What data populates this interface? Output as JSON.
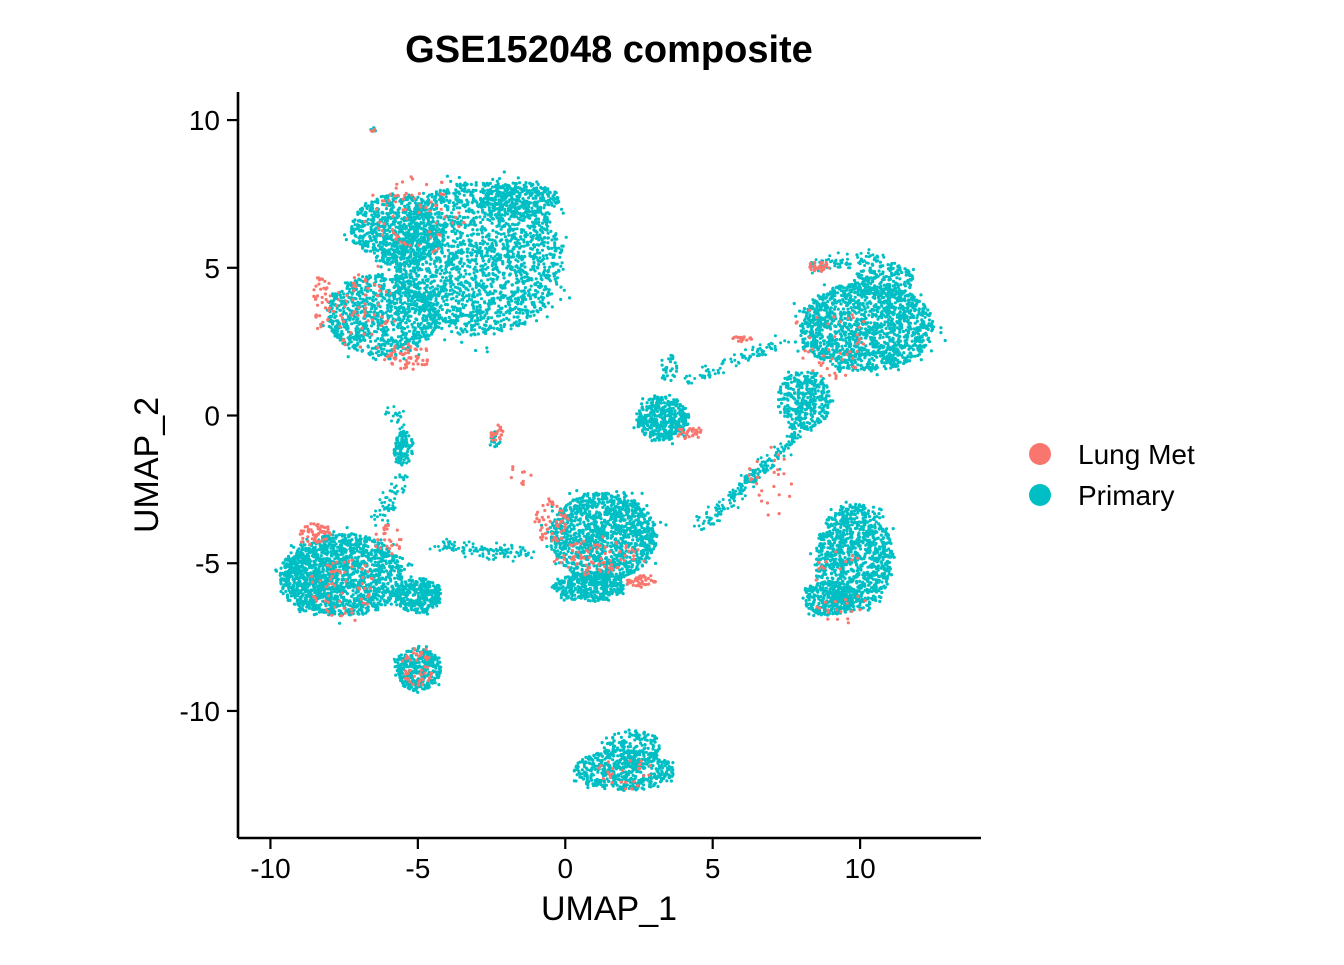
{
  "chart_data": {
    "type": "scatter",
    "title": "GSE152048 composite",
    "xlabel": "UMAP_1",
    "ylabel": "UMAP_2",
    "xlim": [
      -11.1,
      14.1
    ],
    "ylim": [
      -14.3,
      10.95
    ],
    "xticks": [
      -10,
      -5,
      0,
      5,
      10
    ],
    "xtick_labels": [
      "-10",
      "-5",
      "0",
      "5",
      "10"
    ],
    "yticks": [
      10,
      5,
      0,
      -5,
      -10
    ],
    "ytick_labels": [
      "10",
      "5",
      "0",
      "-5",
      "-10"
    ],
    "grid": false,
    "legend_position": "right",
    "series": [
      {
        "name": "Lung Met",
        "color": "#F8766D",
        "clusters": [
          {
            "cx": -5.0,
            "cy": 6.8,
            "rx": 1.6,
            "ry": 1.3,
            "n": 70
          },
          {
            "cx": -8.2,
            "cy": 3.8,
            "rx": 0.35,
            "ry": 1.1,
            "n": 40
          },
          {
            "cx": -5.3,
            "cy": 2.0,
            "rx": 0.75,
            "ry": 0.45,
            "n": 60
          },
          {
            "cx": -6.8,
            "cy": 3.5,
            "rx": 1.1,
            "ry": 1.4,
            "n": 60
          },
          {
            "cx": -8.5,
            "cy": -4.0,
            "rx": 0.55,
            "ry": 0.35,
            "n": 55
          },
          {
            "cx": -7.5,
            "cy": -5.8,
            "rx": 1.1,
            "ry": 1.0,
            "n": 60
          },
          {
            "cx": -5.0,
            "cy": -8.5,
            "rx": 0.55,
            "ry": 0.7,
            "n": 45
          },
          {
            "cx": -6.0,
            "cy": -4.2,
            "rx": 0.5,
            "ry": 0.5,
            "n": 25
          },
          {
            "cx": -0.5,
            "cy": -3.6,
            "rx": 0.55,
            "ry": 0.8,
            "n": 60
          },
          {
            "cx": 1.0,
            "cy": -4.8,
            "rx": 1.5,
            "ry": 0.6,
            "n": 80
          },
          {
            "cx": 2.6,
            "cy": -5.6,
            "rx": 0.5,
            "ry": 0.2,
            "n": 45
          },
          {
            "cx": 8.6,
            "cy": 5.05,
            "rx": 0.35,
            "ry": 0.2,
            "n": 35
          },
          {
            "cx": 6.0,
            "cy": 2.6,
            "rx": 0.35,
            "ry": 0.1,
            "n": 18
          },
          {
            "cx": 9.0,
            "cy": 2.5,
            "rx": 1.4,
            "ry": 1.3,
            "n": 45
          },
          {
            "cx": 7.0,
            "cy": -2.2,
            "rx": 0.8,
            "ry": 1.2,
            "n": 25
          },
          {
            "cx": 4.2,
            "cy": -0.6,
            "rx": 0.45,
            "ry": 0.2,
            "n": 30
          },
          {
            "cx": -2.3,
            "cy": -0.6,
            "rx": 0.25,
            "ry": 0.35,
            "n": 20
          },
          {
            "cx": -1.5,
            "cy": -2.0,
            "rx": 0.4,
            "ry": 0.4,
            "n": 10
          },
          {
            "cx": 9.3,
            "cy": -5.8,
            "rx": 1.0,
            "ry": 1.2,
            "n": 30
          },
          {
            "cx": 2.0,
            "cy": -12.1,
            "rx": 1.0,
            "ry": 0.6,
            "n": 25
          },
          {
            "cx": -6.5,
            "cy": 9.6,
            "rx": 0.1,
            "ry": 0.1,
            "n": 3
          }
        ]
      },
      {
        "name": "Primary",
        "color": "#00BFC4",
        "clusters": [
          {
            "cx": -3.0,
            "cy": 5.3,
            "rx": 2.9,
            "ry": 2.6,
            "n": 2000
          },
          {
            "cx": -5.7,
            "cy": 6.3,
            "rx": 1.6,
            "ry": 1.2,
            "n": 700
          },
          {
            "cx": -6.2,
            "cy": 3.4,
            "rx": 1.9,
            "ry": 1.4,
            "n": 900
          },
          {
            "cx": -1.5,
            "cy": 7.3,
            "rx": 1.3,
            "ry": 0.6,
            "n": 300
          },
          {
            "cx": 10.2,
            "cy": 3.0,
            "rx": 2.3,
            "ry": 1.5,
            "n": 1500
          },
          {
            "cx": 10.8,
            "cy": 4.6,
            "rx": 1.0,
            "ry": 0.6,
            "n": 200
          },
          {
            "cx": 3.3,
            "cy": -0.1,
            "rx": 0.9,
            "ry": 0.75,
            "n": 450
          },
          {
            "cx": 8.1,
            "cy": 0.5,
            "rx": 0.9,
            "ry": 1.0,
            "n": 300
          },
          {
            "cx": 9.8,
            "cy": -4.8,
            "rx": 1.3,
            "ry": 1.8,
            "n": 1000
          },
          {
            "cx": 9.0,
            "cy": -6.2,
            "rx": 0.9,
            "ry": 0.6,
            "n": 300
          },
          {
            "cx": 1.3,
            "cy": -4.1,
            "rx": 1.8,
            "ry": 1.5,
            "n": 1300
          },
          {
            "cx": 0.8,
            "cy": -5.8,
            "rx": 1.2,
            "ry": 0.5,
            "n": 350
          },
          {
            "cx": -7.5,
            "cy": -5.4,
            "rx": 2.0,
            "ry": 1.4,
            "n": 1400
          },
          {
            "cx": -8.8,
            "cy": -5.5,
            "rx": 0.9,
            "ry": 1.0,
            "n": 300
          },
          {
            "cx": -5.0,
            "cy": -6.1,
            "rx": 0.8,
            "ry": 0.6,
            "n": 300
          },
          {
            "cx": -5.0,
            "cy": -8.6,
            "rx": 0.8,
            "ry": 0.7,
            "n": 350
          },
          {
            "cx": 2.0,
            "cy": -12.0,
            "rx": 1.7,
            "ry": 0.7,
            "n": 500
          },
          {
            "cx": 2.3,
            "cy": -11.2,
            "rx": 1.0,
            "ry": 0.55,
            "n": 150
          },
          {
            "cx": -5.5,
            "cy": -1.1,
            "rx": 0.35,
            "ry": 0.55,
            "n": 120
          },
          {
            "cx": -2.4,
            "cy": -0.8,
            "rx": 0.2,
            "ry": 0.3,
            "n": 20
          },
          {
            "cx": 3.5,
            "cy": 1.6,
            "rx": 0.3,
            "ry": 0.5,
            "n": 30
          },
          {
            "cx": -6.5,
            "cy": 9.65,
            "rx": 0.1,
            "ry": 0.1,
            "n": 6
          }
        ],
        "trails": [
          {
            "x1": -4.4,
            "y1": -4.4,
            "x2": -1.3,
            "y2": -4.7,
            "n": 120
          },
          {
            "x1": 4.6,
            "y1": -3.8,
            "x2": 7.7,
            "y2": -0.8,
            "n": 200
          },
          {
            "x1": 7.7,
            "y1": -0.8,
            "x2": 8.6,
            "y2": 1.2,
            "n": 100
          },
          {
            "x1": 4.2,
            "y1": 1.2,
            "x2": 7.4,
            "y2": 2.5,
            "n": 90
          },
          {
            "x1": 8.3,
            "y1": 5.0,
            "x2": 10.8,
            "y2": 5.4,
            "n": 80
          },
          {
            "x1": -5.5,
            "y1": -2.0,
            "x2": -6.3,
            "y2": -3.6,
            "n": 60
          },
          {
            "x1": -6.0,
            "y1": 0.4,
            "x2": -5.5,
            "y2": -0.6,
            "n": 25
          }
        ]
      }
    ]
  }
}
